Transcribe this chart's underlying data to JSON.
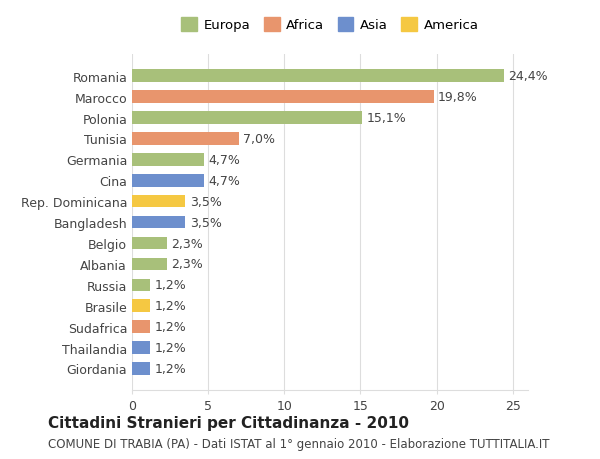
{
  "categories": [
    "Giordania",
    "Thailandia",
    "Sudafrica",
    "Brasile",
    "Russia",
    "Albania",
    "Belgio",
    "Bangladesh",
    "Rep. Dominicana",
    "Cina",
    "Germania",
    "Tunisia",
    "Polonia",
    "Marocco",
    "Romania"
  ],
  "values": [
    1.2,
    1.2,
    1.2,
    1.2,
    1.2,
    2.3,
    2.3,
    3.5,
    3.5,
    4.7,
    4.7,
    7.0,
    15.1,
    19.8,
    24.4
  ],
  "colors": [
    "#6d8fcd",
    "#6d8fcd",
    "#e8956d",
    "#f5c842",
    "#a8c07a",
    "#a8c07a",
    "#a8c07a",
    "#6d8fcd",
    "#f5c842",
    "#6d8fcd",
    "#a8c07a",
    "#e8956d",
    "#a8c07a",
    "#e8956d",
    "#a8c07a"
  ],
  "labels": [
    "1,2%",
    "1,2%",
    "1,2%",
    "1,2%",
    "1,2%",
    "2,3%",
    "2,3%",
    "3,5%",
    "3,5%",
    "4,7%",
    "4,7%",
    "7,0%",
    "15,1%",
    "19,8%",
    "24,4%"
  ],
  "legend_labels": [
    "Europa",
    "Africa",
    "Asia",
    "America"
  ],
  "legend_colors": [
    "#a8c07a",
    "#e8956d",
    "#6d8fcd",
    "#f5c842"
  ],
  "title": "Cittadini Stranieri per Cittadinanza - 2010",
  "subtitle": "COMUNE DI TRABIA (PA) - Dati ISTAT al 1° gennaio 2010 - Elaborazione TUTTITALIA.IT",
  "xlim": [
    0,
    26
  ],
  "xticks": [
    0,
    5,
    10,
    15,
    20,
    25
  ],
  "background_color": "#ffffff",
  "bar_height": 0.6,
  "grid_color": "#dddddd",
  "label_fontsize": 9,
  "tick_fontsize": 9,
  "title_fontsize": 11,
  "subtitle_fontsize": 8.5
}
